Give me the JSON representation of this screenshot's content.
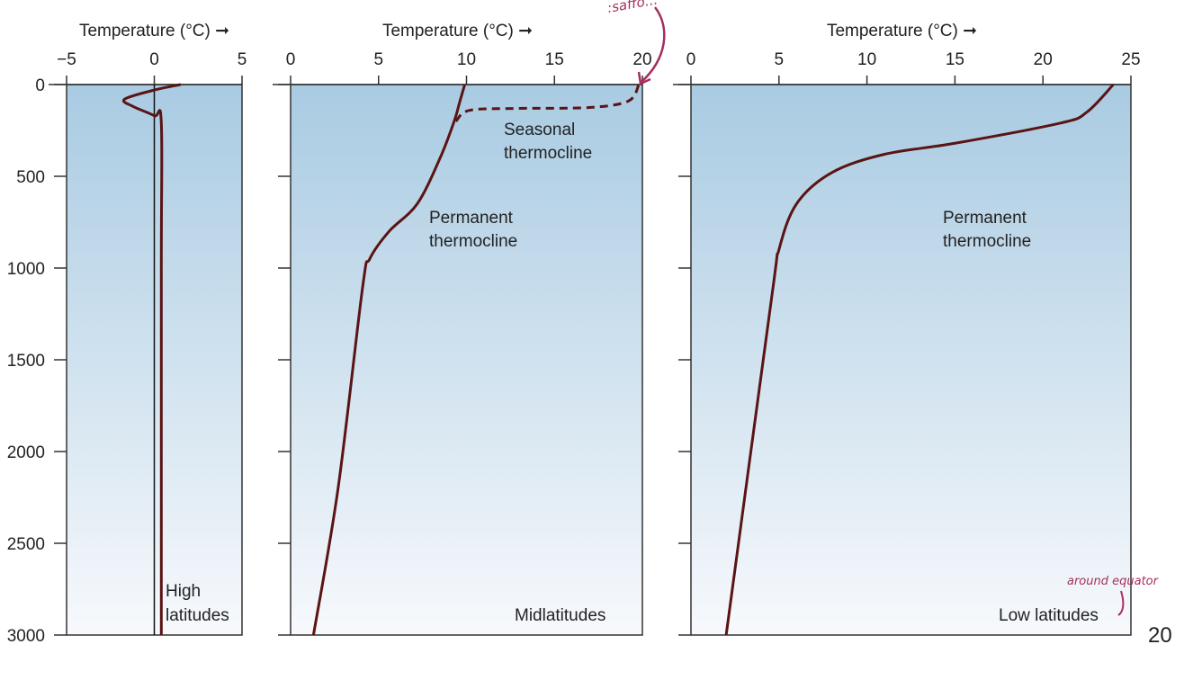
{
  "page_number": "20",
  "annotations": {
    "top": ":saffo...",
    "bottom": "around equator"
  },
  "colors": {
    "curve": "#5a1414",
    "water_top": "#a9cbe2",
    "water_bottom": "#f7f9fc",
    "annotation": "#a3305f"
  },
  "chart_data": [
    {
      "type": "line",
      "xlabel": "Temperature (°C) ➞",
      "ylabel": "",
      "xlim": [
        -5,
        5
      ],
      "ylim": [
        3000,
        0
      ],
      "xticks": [
        "−5",
        "0",
        "5"
      ],
      "yticks": [
        "0",
        "500",
        "1000",
        "1500",
        "2000",
        "2500",
        "3000"
      ],
      "panel_label": "High\nlatitudes",
      "label_lines": [
        "High",
        "latitudes"
      ],
      "series": [
        {
          "style": "solid",
          "x": [
            1.5,
            0,
            -1.7,
            -1.2,
            0,
            0.4,
            0.4,
            0.4
          ],
          "y": [
            0,
            30,
            80,
            120,
            170,
            210,
            1000,
            3000
          ]
        }
      ]
    },
    {
      "type": "line",
      "xlabel": "Temperature (°C) ➞",
      "xlim": [
        0,
        20
      ],
      "ylim": [
        3000,
        0
      ],
      "xticks": [
        "0",
        "5",
        "10",
        "15",
        "20"
      ],
      "label_lines": [
        "Midlatitudes"
      ],
      "annotations": [
        [
          "Seasonal",
          "thermocline"
        ],
        [
          "Permanent",
          "thermocline"
        ]
      ],
      "series": [
        {
          "style": "solid",
          "x": [
            9.9,
            9.6,
            9.3,
            8.5,
            7.2,
            5.6,
            4.5,
            4.1,
            2.7,
            1.3
          ],
          "y": [
            0,
            100,
            200,
            400,
            650,
            800,
            950,
            1100,
            2200,
            3000
          ]
        },
        {
          "style": "dashed",
          "x": [
            9.4,
            10.2,
            13,
            17,
            19.2,
            19.8
          ],
          "y": [
            200,
            140,
            130,
            125,
            90,
            0
          ]
        }
      ]
    },
    {
      "type": "line",
      "xlabel": "Temperature (°C) ➞",
      "xlim": [
        0,
        25
      ],
      "ylim": [
        3000,
        0
      ],
      "xticks": [
        "0",
        "5",
        "10",
        "15",
        "20",
        "25"
      ],
      "label_lines": [
        "Low latitudes"
      ],
      "annotations": [
        [
          "Permanent",
          "thermocline"
        ]
      ],
      "series": [
        {
          "style": "solid",
          "x": [
            24,
            22.5,
            21,
            15,
            11,
            8,
            6,
            5,
            4.6,
            2
          ],
          "y": [
            0,
            150,
            210,
            320,
            380,
            480,
            650,
            900,
            1150,
            3000
          ]
        }
      ]
    }
  ]
}
